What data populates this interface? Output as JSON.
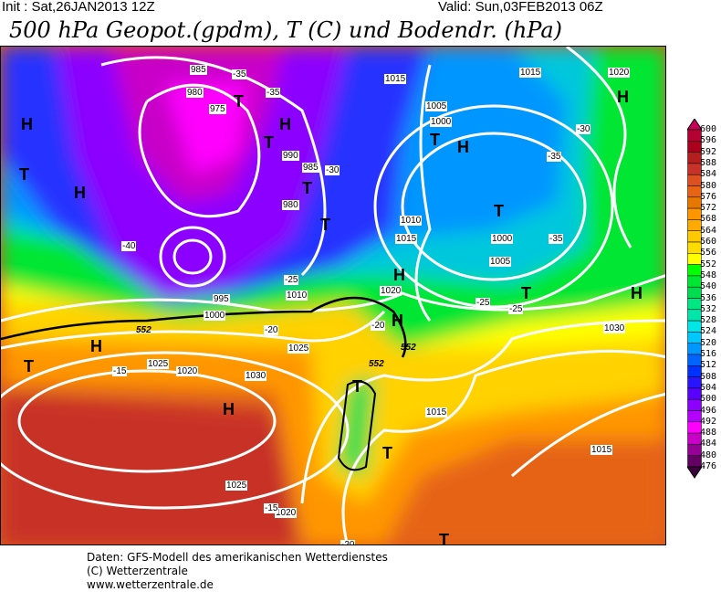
{
  "header": {
    "init": "Init : Sat,26JAN2013 12Z",
    "valid": "Valid: Sun,03FEB2013 06Z",
    "title": "500 hPa Geopot.(gpdm), T (C) und Bodendr. (hPa)"
  },
  "colorbar": {
    "labels": [
      "600",
      "596",
      "592",
      "588",
      "584",
      "580",
      "576",
      "572",
      "568",
      "564",
      "560",
      "556",
      "552",
      "548",
      "540",
      "536",
      "532",
      "528",
      "524",
      "520",
      "516",
      "512",
      "508",
      "504",
      "500",
      "496",
      "492",
      "488",
      "484",
      "480",
      "476"
    ],
    "colors": [
      "#c8005a",
      "#b40032",
      "#aa001e",
      "#b41e1e",
      "#c83228",
      "#dc5022",
      "#e66414",
      "#e67800",
      "#ff9600",
      "#ffaa00",
      "#ffc800",
      "#ffdc00",
      "#ffff00",
      "#00ff00",
      "#00e632",
      "#00dc50",
      "#00e682",
      "#00e6aa",
      "#00e6e6",
      "#00c8ff",
      "#0096ff",
      "#0064ff",
      "#0032ff",
      "#2814ff",
      "#5a00ff",
      "#8c00ff",
      "#b400ff",
      "#ff00ff",
      "#c800c8",
      "#960096",
      "#640064",
      "#3c003c"
    ]
  },
  "map": {
    "labels": [
      "H",
      "H",
      "H",
      "H",
      "H",
      "H",
      "H",
      "H",
      "H",
      "H",
      "T",
      "T",
      "T",
      "T",
      "T",
      "T",
      "T",
      "T",
      "T",
      "T",
      "T",
      "T"
    ],
    "isobars": [
      "985",
      "980",
      "975",
      "990",
      "985",
      "980",
      "1015",
      "1020",
      "1015",
      "1005",
      "1000",
      "1010",
      "1000",
      "1005",
      "1015",
      "1020",
      "1025",
      "1030",
      "1025",
      "1020",
      "1015",
      "1010",
      "1000",
      "995",
      "1030",
      "1025",
      "1020",
      "1015"
    ],
    "temps": [
      "-35",
      "-35",
      "-30",
      "-35",
      "-35",
      "-30",
      "-25",
      "-25",
      "-20",
      "-20",
      "-15",
      "-15",
      "-20",
      "-25",
      "-40"
    ],
    "isohypse": [
      "552",
      "552",
      "552"
    ]
  },
  "footer": {
    "line1": "Daten: GFS-Modell des amerikanischen Wetterdienstes",
    "line2": "(C) Wetterzentrale",
    "line3": "www.wetterzentrale.de"
  }
}
